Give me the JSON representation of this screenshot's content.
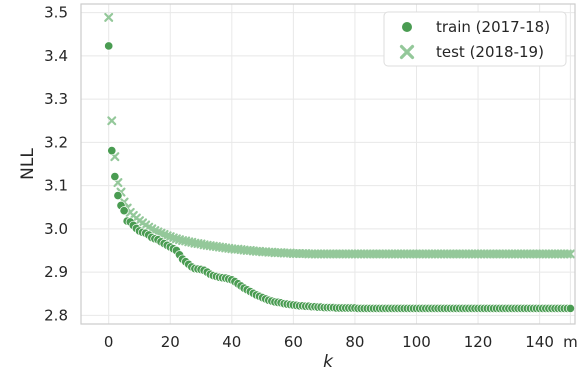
{
  "chart_data": {
    "type": "scatter",
    "xlabel": "k",
    "ylabel": "NLL",
    "xlim": [
      -9,
      151.5
    ],
    "ylim": [
      2.78,
      3.52
    ],
    "x_ticks": [
      0,
      20,
      40,
      60,
      80,
      100,
      120,
      140
    ],
    "x_extra_tick": {
      "value": 150,
      "label": "m"
    },
    "y_ticks": [
      2.8,
      2.9,
      3.0,
      3.1,
      3.2,
      3.3,
      3.4,
      3.5
    ],
    "y_tick_labels": [
      "2.8",
      "2.9",
      "3.0",
      "3.1",
      "3.2",
      "3.3",
      "3.4",
      "3.5"
    ],
    "grid": true,
    "legend_position": "top-right",
    "colors": {
      "train": "#4a9c52",
      "test": "#94c89a",
      "grid": "#e8e8e8",
      "frame": "#cccccc"
    },
    "series": [
      {
        "name": "train (2017-18)",
        "marker": "circle",
        "x": [
          0,
          1,
          2,
          3,
          4,
          5,
          6,
          7,
          8,
          9,
          10,
          11,
          12,
          13,
          14,
          15,
          16,
          17,
          18,
          19,
          20,
          21,
          22,
          23,
          24,
          25,
          26,
          27,
          28,
          29,
          30,
          31,
          32,
          33,
          34,
          35,
          36,
          37,
          38,
          39,
          40,
          41,
          42,
          43,
          44,
          45,
          46,
          47,
          48,
          49,
          50,
          51,
          52,
          53,
          54,
          55,
          56,
          57,
          58,
          59,
          60,
          61,
          62,
          63,
          64,
          65,
          66,
          67,
          68,
          69,
          70,
          71,
          72,
          73,
          74,
          75,
          76,
          77,
          78,
          79,
          80,
          81,
          82,
          83,
          84,
          85,
          86,
          87,
          88,
          89,
          90,
          91,
          92,
          93,
          94,
          95,
          96,
          97,
          98,
          99,
          100,
          101,
          102,
          103,
          104,
          105,
          106,
          107,
          108,
          109,
          110,
          111,
          112,
          113,
          114,
          115,
          116,
          117,
          118,
          119,
          120,
          121,
          122,
          123,
          124,
          125,
          126,
          127,
          128,
          129,
          130,
          131,
          132,
          133,
          134,
          135,
          136,
          137,
          138,
          139,
          140,
          141,
          142,
          143,
          144,
          145,
          146,
          147,
          148,
          149,
          150
        ],
        "y": [
          3.423,
          3.181,
          3.121,
          3.077,
          3.054,
          3.042,
          3.018,
          3.016,
          3.008,
          3.001,
          2.995,
          2.992,
          2.99,
          2.986,
          2.98,
          2.977,
          2.975,
          2.97,
          2.966,
          2.962,
          2.958,
          2.954,
          2.95,
          2.94,
          2.93,
          2.924,
          2.918,
          2.912,
          2.908,
          2.907,
          2.906,
          2.904,
          2.9,
          2.895,
          2.892,
          2.89,
          2.888,
          2.887,
          2.886,
          2.884,
          2.882,
          2.878,
          2.873,
          2.868,
          2.863,
          2.859,
          2.855,
          2.851,
          2.847,
          2.844,
          2.841,
          2.838,
          2.835,
          2.833,
          2.831,
          2.83,
          2.829,
          2.827,
          2.826,
          2.825,
          2.824,
          2.823,
          2.822,
          2.822,
          2.821,
          2.821,
          2.82,
          2.82,
          2.819,
          2.819,
          2.818,
          2.818,
          2.818,
          2.818,
          2.817,
          2.817,
          2.817,
          2.817,
          2.817,
          2.817,
          2.817,
          2.816,
          2.816,
          2.816,
          2.816,
          2.816,
          2.816,
          2.816,
          2.816,
          2.816,
          2.816,
          2.816,
          2.816,
          2.816,
          2.816,
          2.816,
          2.816,
          2.816,
          2.816,
          2.816,
          2.816,
          2.816,
          2.816,
          2.816,
          2.816,
          2.816,
          2.816,
          2.816,
          2.816,
          2.816,
          2.816,
          2.816,
          2.816,
          2.816,
          2.816,
          2.816,
          2.816,
          2.816,
          2.816,
          2.816,
          2.816,
          2.816,
          2.816,
          2.816,
          2.816,
          2.816,
          2.816,
          2.816,
          2.816,
          2.816,
          2.816,
          2.816,
          2.816,
          2.816,
          2.816,
          2.816,
          2.816,
          2.816,
          2.816,
          2.816,
          2.816,
          2.816,
          2.816,
          2.816,
          2.816,
          2.816,
          2.816,
          2.816,
          2.816,
          2.816,
          2.816
        ]
      },
      {
        "name": "test (2018-19)",
        "marker": "x",
        "x": [
          0,
          1,
          2,
          3,
          4,
          5,
          6,
          7,
          8,
          9,
          10,
          11,
          12,
          13,
          14,
          15,
          16,
          17,
          18,
          19,
          20,
          21,
          22,
          23,
          24,
          25,
          26,
          27,
          28,
          29,
          30,
          31,
          32,
          33,
          34,
          35,
          36,
          37,
          38,
          39,
          40,
          41,
          42,
          43,
          44,
          45,
          46,
          47,
          48,
          49,
          50,
          51,
          52,
          53,
          54,
          55,
          56,
          57,
          58,
          59,
          60,
          61,
          62,
          63,
          64,
          65,
          66,
          67,
          68,
          69,
          70,
          71,
          72,
          73,
          74,
          75,
          76,
          77,
          78,
          79,
          80,
          81,
          82,
          83,
          84,
          85,
          86,
          87,
          88,
          89,
          90,
          91,
          92,
          93,
          94,
          95,
          96,
          97,
          98,
          99,
          100,
          101,
          102,
          103,
          104,
          105,
          106,
          107,
          108,
          109,
          110,
          111,
          112,
          113,
          114,
          115,
          116,
          117,
          118,
          119,
          120,
          121,
          122,
          123,
          124,
          125,
          126,
          127,
          128,
          129,
          130,
          131,
          132,
          133,
          134,
          135,
          136,
          137,
          138,
          139,
          140,
          141,
          142,
          143,
          144,
          145,
          146,
          147,
          148,
          149,
          150
        ],
        "y": [
          3.489,
          3.25,
          3.167,
          3.107,
          3.085,
          3.062,
          3.048,
          3.038,
          3.031,
          3.025,
          3.019,
          3.014,
          3.009,
          3.004,
          3.0,
          2.996,
          2.993,
          2.99,
          2.987,
          2.984,
          2.982,
          2.979,
          2.977,
          2.975,
          2.973,
          2.972,
          2.97,
          2.969,
          2.967,
          2.966,
          2.965,
          2.963,
          2.962,
          2.961,
          2.96,
          2.959,
          2.958,
          2.957,
          2.956,
          2.955,
          2.954,
          2.953,
          2.953,
          2.952,
          2.951,
          2.95,
          2.95,
          2.949,
          2.948,
          2.948,
          2.947,
          2.947,
          2.946,
          2.946,
          2.945,
          2.945,
          2.945,
          2.944,
          2.944,
          2.944,
          2.943,
          2.943,
          2.943,
          2.943,
          2.943,
          2.942,
          2.942,
          2.942,
          2.942,
          2.942,
          2.942,
          2.942,
          2.942,
          2.942,
          2.942,
          2.942,
          2.942,
          2.942,
          2.942,
          2.942,
          2.942,
          2.942,
          2.942,
          2.942,
          2.942,
          2.942,
          2.942,
          2.942,
          2.942,
          2.942,
          2.942,
          2.942,
          2.942,
          2.942,
          2.942,
          2.942,
          2.942,
          2.942,
          2.942,
          2.942,
          2.942,
          2.942,
          2.942,
          2.942,
          2.942,
          2.942,
          2.942,
          2.942,
          2.942,
          2.942,
          2.942,
          2.942,
          2.942,
          2.942,
          2.942,
          2.942,
          2.942,
          2.942,
          2.942,
          2.942,
          2.942,
          2.942,
          2.942,
          2.942,
          2.942,
          2.942,
          2.942,
          2.942,
          2.942,
          2.942,
          2.942,
          2.942,
          2.942,
          2.942,
          2.942,
          2.942,
          2.942,
          2.942,
          2.942,
          2.942,
          2.942,
          2.942,
          2.942,
          2.942,
          2.942,
          2.942,
          2.942,
          2.942,
          2.942,
          2.942,
          2.942
        ]
      }
    ]
  }
}
